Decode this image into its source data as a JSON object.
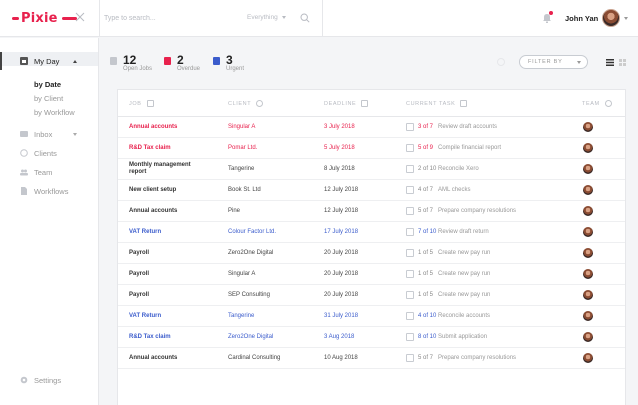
{
  "app": {
    "logo_text": "Pixie",
    "search_placeholder": "Type to search...",
    "search_scope": "Everything",
    "user_name": "John Yan"
  },
  "sidebar": {
    "my_day": "My Day",
    "sub_items": [
      "by Date",
      "by Client",
      "by Workflow"
    ],
    "items": [
      "Inbox",
      "Clients",
      "Team",
      "Workflows"
    ],
    "settings": "Settings"
  },
  "summary": {
    "open_jobs": {
      "count": "12",
      "label": "Open Jobs"
    },
    "overdue": {
      "count": "2",
      "label": "Overdue"
    },
    "urgent": {
      "count": "3",
      "label": "Urgent"
    },
    "filter_label": "FILTER BY"
  },
  "table": {
    "headers": {
      "job": "JOB",
      "client": "CLIENT",
      "deadline": "DEADLINE",
      "task": "CURRENT TASK",
      "team": "TEAM"
    },
    "rows": [
      {
        "job": "Annual accounts",
        "client": "Singular A",
        "deadline": "3 July 2018",
        "progress": "3 of 7",
        "task": "Review draft accounts",
        "status": "red"
      },
      {
        "job": "R&D Tax claim",
        "client": "Pomar Ltd.",
        "deadline": "5 July 2018",
        "progress": "5 of 9",
        "task": "Compile financial report",
        "status": "red"
      },
      {
        "job": "Monthly management report",
        "client": "Tangerine",
        "deadline": "8 July 2018",
        "progress": "2 of 10",
        "task": "Reconcile Xero",
        "status": "normal"
      },
      {
        "job": "New client setup",
        "client": "Book St. Ltd",
        "deadline": "12 July 2018",
        "progress": "4 of 7",
        "task": "AML checks",
        "status": "normal"
      },
      {
        "job": "Annual accounts",
        "client": "Pine",
        "deadline": "12 July 2018",
        "progress": "5 of 7",
        "task": "Prepare company resolutions",
        "status": "normal"
      },
      {
        "job": "VAT Return",
        "client": "Colour Factor Ltd.",
        "deadline": "17 July 2018",
        "progress": "7 of 10",
        "task": "Review draft return",
        "status": "blue"
      },
      {
        "job": "Payroll",
        "client": "Zero2One Digital",
        "deadline": "20 July 2018",
        "progress": "1 of 5",
        "task": "Create new pay run",
        "status": "normal"
      },
      {
        "job": "Payroll",
        "client": "Singular A",
        "deadline": "20 July 2018",
        "progress": "1 of 5",
        "task": "Create new pay run",
        "status": "normal"
      },
      {
        "job": "Payroll",
        "client": "SEP Consulting",
        "deadline": "20 July 2018",
        "progress": "1 of 5",
        "task": "Create new pay run",
        "status": "normal"
      },
      {
        "job": "VAT Return",
        "client": "Tangerine",
        "deadline": "31 July 2018",
        "progress": "4 of 10",
        "task": "Reconcile accounts",
        "status": "blue"
      },
      {
        "job": "R&D Tax claim",
        "client": "Zero2One Digital",
        "deadline": "3 Aug 2018",
        "progress": "8 of 10",
        "task": "Submit application",
        "status": "blue"
      },
      {
        "job": "Annual accounts",
        "client": "Cardinal Consulting",
        "deadline": "10 Aug 2018",
        "progress": "5 of 7",
        "task": "Prepare company resolutions",
        "status": "normal"
      }
    ]
  },
  "colors": {
    "brand": "#e8214d",
    "urgent": "#3b5ccc"
  }
}
